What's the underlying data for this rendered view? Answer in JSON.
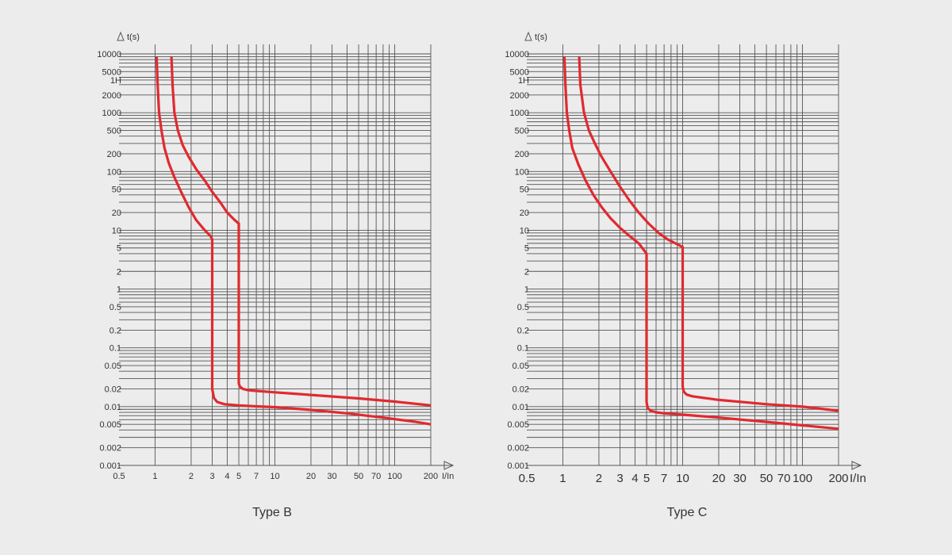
{
  "chart_data": [
    {
      "type": "line",
      "title": "Type B",
      "xlabel": "I/In",
      "ylabel": "t(s)",
      "xscale": "log",
      "yscale": "log",
      "xlim": [
        0.5,
        200
      ],
      "ylim": [
        0.001,
        10000
      ],
      "x_tick_labels": [
        "0.5",
        "1",
        "2",
        "3",
        "4",
        "5",
        "7",
        "10",
        "20",
        "30",
        "50",
        "70",
        "100",
        "200"
      ],
      "y_tick_labels": [
        "10000",
        "5000",
        "1H",
        "2000",
        "1000",
        "500",
        "200",
        "100",
        "50",
        "20",
        "10",
        "5",
        "2",
        "1",
        "0.5",
        "0.2",
        "0.1",
        "0.05",
        "0.02",
        "0.01",
        "0.005",
        "0.002",
        "0.001"
      ],
      "grid": true,
      "series": [
        {
          "color": "#e02a2f",
          "x": [
            1.03,
            1.05,
            1.08,
            1.13,
            1.2,
            1.3,
            1.45,
            1.65,
            1.9,
            2.2,
            2.6,
            2.9,
            3.0,
            3.0,
            3.0,
            3.1,
            3.3,
            3.8,
            5,
            7,
            10,
            20,
            40,
            80,
            150,
            200
          ],
          "y": [
            9000,
            3000,
            1000,
            500,
            250,
            140,
            80,
            45,
            25,
            15,
            10,
            8,
            7,
            1,
            0.02,
            0.014,
            0.012,
            0.011,
            0.0105,
            0.0101,
            0.0098,
            0.0088,
            0.0077,
            0.0065,
            0.0055,
            0.005
          ]
        },
        {
          "color": "#e02a2f",
          "x": [
            1.37,
            1.4,
            1.45,
            1.55,
            1.7,
            1.9,
            2.2,
            2.6,
            3.0,
            3.5,
            4.0,
            4.6,
            5.0,
            5.0,
            5.0,
            5.1,
            5.4,
            6.0,
            7,
            10,
            20,
            50,
            100,
            200
          ],
          "y": [
            9000,
            3000,
            1000,
            500,
            280,
            180,
            110,
            70,
            45,
            30,
            20,
            15,
            13,
            1,
            0.025,
            0.022,
            0.02,
            0.019,
            0.0185,
            0.0175,
            0.0158,
            0.0138,
            0.0122,
            0.0105
          ]
        }
      ]
    },
    {
      "type": "line",
      "title": "Type C",
      "xlabel": "I/In",
      "ylabel": "t(s)",
      "xscale": "log",
      "yscale": "log",
      "xlim": [
        0.5,
        200
      ],
      "ylim": [
        0.001,
        10000
      ],
      "x_tick_labels": [
        "0.5",
        "1",
        "2",
        "3",
        "4",
        "5",
        "7",
        "10",
        "20",
        "30",
        "50",
        "70",
        "100",
        "200"
      ],
      "y_tick_labels": [
        "10000",
        "5000",
        "1H",
        "2000",
        "1000",
        "500",
        "200",
        "100",
        "50",
        "20",
        "10",
        "5",
        "2",
        "1",
        "0.5",
        "0.2",
        "0.1",
        "0.05",
        "0.02",
        "0.01",
        "0.005",
        "0.002",
        "0.001"
      ],
      "grid": true,
      "series": [
        {
          "color": "#e02a2f",
          "x": [
            1.03,
            1.05,
            1.08,
            1.13,
            1.2,
            1.35,
            1.55,
            1.8,
            2.1,
            2.5,
            3.0,
            3.6,
            4.3,
            5.0,
            5.0,
            5.0,
            5.1,
            5.4,
            6.0,
            7,
            10,
            20,
            50,
            100,
            200
          ],
          "y": [
            9000,
            3000,
            1000,
            500,
            250,
            130,
            70,
            40,
            25,
            16,
            11,
            8,
            6,
            4,
            1,
            0.012,
            0.0095,
            0.0085,
            0.008,
            0.0077,
            0.0073,
            0.0065,
            0.0055,
            0.0048,
            0.0042
          ]
        },
        {
          "color": "#e02a2f",
          "x": [
            1.37,
            1.4,
            1.5,
            1.65,
            1.85,
            2.1,
            2.5,
            3.0,
            3.6,
            4.3,
            5.2,
            6.3,
            7.5,
            9.0,
            10.0,
            10.0,
            10.0,
            10.2,
            10.8,
            12,
            20,
            50,
            100,
            200
          ],
          "y": [
            9000,
            3000,
            1000,
            500,
            300,
            180,
            100,
            55,
            32,
            20,
            13,
            9,
            7,
            5.8,
            5.2,
            1,
            0.022,
            0.018,
            0.016,
            0.015,
            0.013,
            0.011,
            0.01,
            0.0085
          ]
        }
      ]
    }
  ]
}
